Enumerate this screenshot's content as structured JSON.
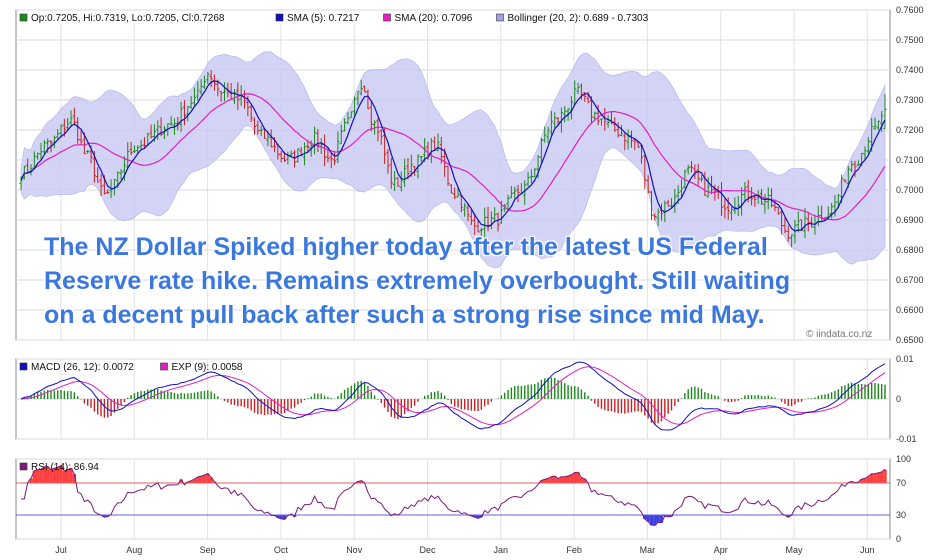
{
  "annotation": {
    "lines": [
      "The NZ Dollar Spiked higher today after the latest US Federal",
      "Reserve rate hike. Remains extremely overbought. Still waiting",
      "on a decent pull back after such a strong rise since mid May."
    ]
  },
  "watermark": "© iindata.co.nz",
  "colors": {
    "up": "#1a8a1a",
    "down": "#c82020",
    "sma5": "#1010c0",
    "sma20": "#e020c0",
    "band": "#c8c8f4",
    "macd": "#1010c0",
    "exp": "#e020c0",
    "rsi": "#7a1a7a",
    "rsi_ob": "#ff4040",
    "rsi_os": "#4040e0"
  },
  "chart_data": [
    {
      "type": "candlestick",
      "legend": [
        {
          "label": "Op:0.7205, Hi:0.7319, Lo:0.7205, Cl:0.7268",
          "color": "#1a8a1a"
        },
        {
          "label": "SMA (5): 0.7217",
          "color": "#1010c0"
        },
        {
          "label": "SMA (20): 0.7096",
          "color": "#e020c0"
        },
        {
          "label": "Bollinger (20, 2): 0.689 - 0.7303",
          "color": "#a0a0e8"
        }
      ],
      "ylim": [
        0.65,
        0.76
      ],
      "yticks": [
        "0.7600",
        "0.7500",
        "0.7400",
        "0.7300",
        "0.7200",
        "0.7100",
        "0.7000",
        "0.6900",
        "0.6800",
        "0.6700",
        "0.6600",
        "0.6500"
      ],
      "xticks": [
        "Jul",
        "Aug",
        "Sep",
        "Oct",
        "Nov",
        "Dec",
        "Jan",
        "Feb",
        "Mar",
        "Apr",
        "May",
        "Jun"
      ],
      "close_anchors": [
        [
          0,
          0.7055
        ],
        [
          8,
          0.715
        ],
        [
          15,
          0.723
        ],
        [
          20,
          0.711
        ],
        [
          25,
          0.698
        ],
        [
          35,
          0.715
        ],
        [
          45,
          0.722
        ],
        [
          52,
          0.73
        ],
        [
          56,
          0.739
        ],
        [
          60,
          0.733
        ],
        [
          66,
          0.73
        ],
        [
          72,
          0.718
        ],
        [
          80,
          0.71
        ],
        [
          88,
          0.717
        ],
        [
          93,
          0.71
        ],
        [
          98,
          0.722
        ],
        [
          102,
          0.736
        ],
        [
          106,
          0.722
        ],
        [
          112,
          0.702
        ],
        [
          118,
          0.709
        ],
        [
          124,
          0.715
        ],
        [
          130,
          0.699
        ],
        [
          136,
          0.688
        ],
        [
          142,
          0.69
        ],
        [
          150,
          0.7
        ],
        [
          160,
          0.723
        ],
        [
          167,
          0.732
        ],
        [
          172,
          0.725
        ],
        [
          178,
          0.72
        ],
        [
          184,
          0.716
        ],
        [
          190,
          0.692
        ],
        [
          195,
          0.696
        ],
        [
          200,
          0.706
        ],
        [
          206,
          0.7
        ],
        [
          212,
          0.695
        ],
        [
          218,
          0.699
        ],
        [
          224,
          0.696
        ],
        [
          230,
          0.686
        ],
        [
          236,
          0.689
        ],
        [
          242,
          0.693
        ],
        [
          250,
          0.71
        ],
        [
          256,
          0.72
        ],
        [
          259,
          0.7268
        ]
      ],
      "last": {
        "open": 0.7205,
        "high": 0.7319,
        "low": 0.7205,
        "close": 0.7268
      }
    },
    {
      "type": "line",
      "legend": [
        {
          "label": "MACD (26, 12): 0.0072",
          "color": "#1010c0"
        },
        {
          "label": "EXP (9): 0.0058",
          "color": "#e020c0"
        }
      ],
      "ylim": [
        -0.01,
        0.01
      ],
      "yticks": [
        "0.01",
        "0",
        "-0.01"
      ]
    },
    {
      "type": "line",
      "legend": [
        {
          "label": "RSI (14): 86.94",
          "color": "#7a1a7a"
        }
      ],
      "ylim": [
        0,
        100
      ],
      "yticks": [
        "100",
        "70",
        "30",
        "0"
      ],
      "levels": [
        70,
        30
      ]
    }
  ]
}
